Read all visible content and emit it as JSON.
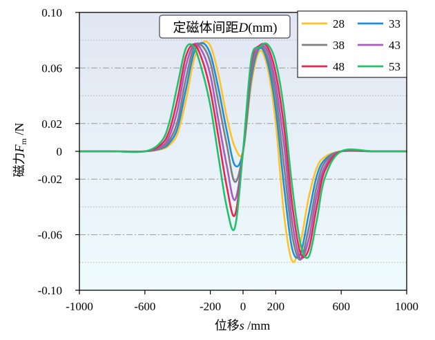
{
  "chart_data": {
    "type": "line",
    "xlabel_main": "位移",
    "xlabel_var": "s",
    "xlabel_unit": " /mm",
    "ylabel_main": "磁力",
    "ylabel_var": "F",
    "ylabel_sub": "m",
    "ylabel_unit": " /N",
    "annotation_main": "定磁体间距",
    "annotation_var": "D",
    "annotation_unit": "(mm)",
    "xlim": [
      -1000,
      1000
    ],
    "ylim": [
      -0.1,
      0.1
    ],
    "x_ticks": [
      {
        "value": -1000,
        "label": "-1000"
      },
      {
        "value": -600,
        "label": "-600"
      },
      {
        "value": -200,
        "label": "-200"
      },
      {
        "value": 0,
        "label": "0"
      },
      {
        "value": 200,
        "label": "200"
      },
      {
        "value": 600,
        "label": "600"
      },
      {
        "value": 1000,
        "label": "1000"
      }
    ],
    "y_ticks": [
      {
        "value": 0.1,
        "label": "0.10"
      },
      {
        "value": 0.06,
        "label": "0.06"
      },
      {
        "value": 0.02,
        "label": "0.02"
      },
      {
        "value": 0,
        "label": "0"
      },
      {
        "value": -0.02,
        "label": "-0.02"
      },
      {
        "value": -0.06,
        "label": "-0.06"
      },
      {
        "value": -0.1,
        "label": "-0.10"
      }
    ],
    "gridlines_dashdot": [
      0.06,
      0.02,
      -0.02,
      -0.06
    ],
    "gridlines_dotted": [
      0.08,
      0.04,
      -0.04,
      -0.08
    ],
    "grid": true,
    "legend_position": "top-right",
    "x": [
      -1000,
      -800,
      -600,
      -500,
      -450,
      -400,
      -350,
      -300,
      -250,
      -200,
      -150,
      -100,
      -50,
      0,
      50,
      100,
      150,
      200,
      250,
      300,
      350,
      400,
      450,
      500,
      600,
      800,
      1000
    ],
    "series": [
      {
        "name": "28",
        "color": "#FFC125",
        "values": [
          0,
          0,
          0,
          0.0015,
          0.0045,
          0.013,
          0.036,
          0.066,
          0.078,
          0.076,
          0.055,
          0.025,
          0.003,
          0,
          0.048,
          0.072,
          0.06,
          0.02,
          -0.045,
          -0.079,
          -0.066,
          -0.034,
          -0.012,
          -0.004,
          0,
          0,
          0
        ]
      },
      {
        "name": "33",
        "color": "#1E8FD6",
        "values": [
          0,
          0,
          0,
          0.002,
          0.006,
          0.017,
          0.044,
          0.071,
          0.078,
          0.07,
          0.045,
          0.015,
          -0.01,
          0,
          0.052,
          0.074,
          0.064,
          0.03,
          -0.025,
          -0.07,
          -0.074,
          -0.046,
          -0.018,
          -0.006,
          0,
          0,
          0
        ]
      },
      {
        "name": "38",
        "color": "#7F7F7F",
        "values": [
          0,
          0,
          0,
          0.0025,
          0.008,
          0.022,
          0.052,
          0.075,
          0.076,
          0.064,
          0.035,
          0.005,
          -0.022,
          0,
          0.056,
          0.075,
          0.068,
          0.04,
          -0.01,
          -0.06,
          -0.078,
          -0.056,
          -0.025,
          -0.008,
          0,
          0,
          0
        ]
      },
      {
        "name": "43",
        "color": "#A65BBF",
        "values": [
          0,
          0,
          0,
          0.0035,
          0.011,
          0.03,
          0.061,
          0.077,
          0.072,
          0.055,
          0.022,
          -0.01,
          -0.035,
          0,
          0.06,
          0.075,
          0.072,
          0.048,
          0.005,
          -0.05,
          -0.077,
          -0.064,
          -0.032,
          -0.011,
          0,
          0,
          0
        ]
      },
      {
        "name": "48",
        "color": "#E8244F",
        "values": [
          0,
          0,
          0,
          0.005,
          0.015,
          0.038,
          0.068,
          0.077,
          0.066,
          0.044,
          0.01,
          -0.025,
          -0.046,
          0,
          0.064,
          0.076,
          0.075,
          0.056,
          0.018,
          -0.038,
          -0.073,
          -0.071,
          -0.04,
          -0.014,
          0,
          0,
          0
        ]
      },
      {
        "name": "53",
        "color": "#22C06B",
        "values": [
          0,
          0,
          0,
          0.007,
          0.021,
          0.048,
          0.074,
          0.075,
          0.058,
          0.033,
          -0.004,
          -0.04,
          -0.055,
          0,
          0.066,
          0.075,
          0.077,
          0.064,
          0.03,
          -0.025,
          -0.066,
          -0.076,
          -0.05,
          -0.019,
          0,
          0,
          0
        ]
      }
    ]
  }
}
